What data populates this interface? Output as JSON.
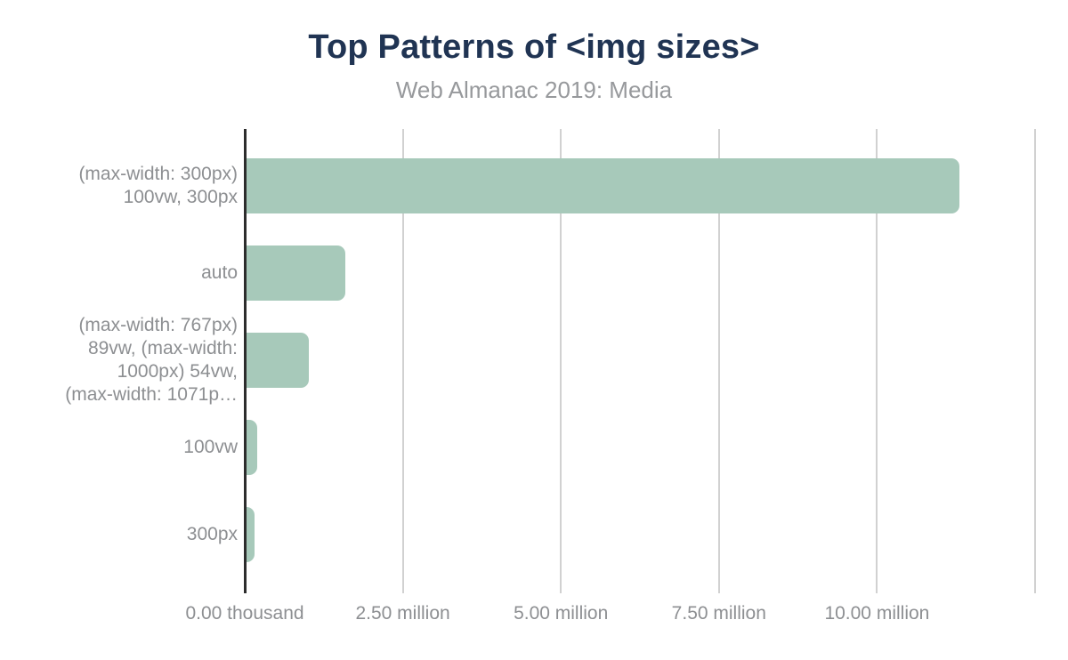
{
  "title": "Top Patterns of <img sizes>",
  "subtitle": "Web Almanac 2019: Media",
  "colors": {
    "title": "#203453",
    "subtitle": "#97999c",
    "bar": "#a7c9ba",
    "gridline": "#d1d1d1",
    "axis": "#2d2d2d",
    "tick_label": "#8d8f92"
  },
  "chart_data": {
    "type": "bar",
    "orientation": "horizontal",
    "title": "Top Patterns of <img sizes>",
    "subtitle": "Web Almanac 2019: Media",
    "categories": [
      "(max-width: 300px) 100vw, 300px",
      "auto",
      "(max-width: 767px) 89vw, (max-width: 1000px) 54vw, (max-width: 1071p…",
      "100vw",
      "300px"
    ],
    "category_label_lines": [
      [
        "(max-width: 300px)",
        "100vw, 300px"
      ],
      [
        "auto"
      ],
      [
        "(max-width: 767px)",
        "89vw, (max-width:",
        "1000px) 54vw,",
        "(max-width: 1071p…"
      ],
      [
        "100vw"
      ],
      [
        "300px"
      ]
    ],
    "values": [
      11300000,
      1590000,
      1010000,
      200000,
      155000
    ],
    "xlabel": "",
    "ylabel": "",
    "xlim": [
      0,
      12500000
    ],
    "x_ticks": [
      {
        "label": "0.00 thousand",
        "value": 0
      },
      {
        "label": "2.50 million",
        "value": 2500000
      },
      {
        "label": "5.00 million",
        "value": 5000000
      },
      {
        "label": "7.50 million",
        "value": 7500000
      },
      {
        "label": "10.00 million",
        "value": 10000000
      }
    ],
    "gridline_values": [
      2500000,
      5000000,
      7500000,
      10000000,
      12500000
    ],
    "grid": true,
    "legend": null
  }
}
